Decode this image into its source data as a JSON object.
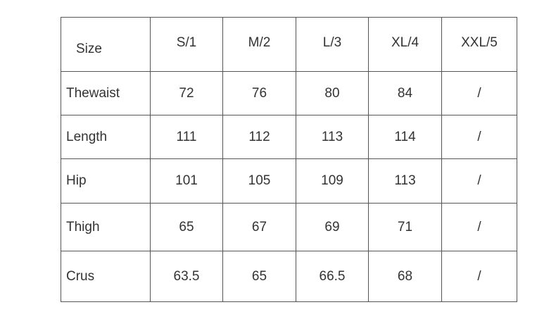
{
  "table": {
    "header": [
      "Size",
      "S/1",
      "M/2",
      "L/3",
      "XL/4",
      "XXL/5"
    ],
    "rows": [
      [
        "Thewaist",
        "72",
        "76",
        "80",
        "84",
        "/"
      ],
      [
        "Length",
        "111",
        "112",
        "113",
        "114",
        "/"
      ],
      [
        "Hip",
        "101",
        "105",
        "109",
        "113",
        "/"
      ],
      [
        "Thigh",
        "65",
        "67",
        "69",
        "71",
        "/"
      ],
      [
        "Crus",
        "63.5",
        "65",
        "66.5",
        "68",
        "/"
      ]
    ]
  }
}
